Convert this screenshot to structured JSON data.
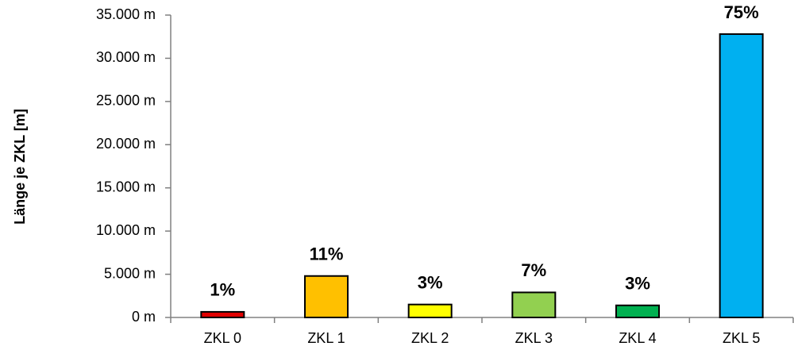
{
  "chart_data": {
    "type": "bar",
    "y_label": "Länge je ZKL [m]",
    "categories": [
      "ZKL 0",
      "ZKL 1",
      "ZKL 2",
      "ZKL 3",
      "ZKL 4",
      "ZKL 5"
    ],
    "values": [
      650,
      4800,
      1500,
      2900,
      1400,
      32800
    ],
    "share_labels": [
      "1%",
      "11%",
      "3%",
      "7%",
      "3%",
      "75%"
    ],
    "colors": [
      "#e00000",
      "#ffc000",
      "#ffff00",
      "#92d050",
      "#00b050",
      "#00b0f0"
    ],
    "ylim": [
      0,
      35000
    ],
    "yticks": [
      {
        "value": 0,
        "label": "0 m"
      },
      {
        "value": 5000,
        "label": "5.000 m"
      },
      {
        "value": 10000,
        "label": "10.000 m"
      },
      {
        "value": 15000,
        "label": "15.000 m"
      },
      {
        "value": 20000,
        "label": "20.000 m"
      },
      {
        "value": 25000,
        "label": "25.000 m"
      },
      {
        "value": 30000,
        "label": "30.000 m"
      },
      {
        "value": 35000,
        "label": "35.000 m"
      }
    ],
    "grid": false
  }
}
